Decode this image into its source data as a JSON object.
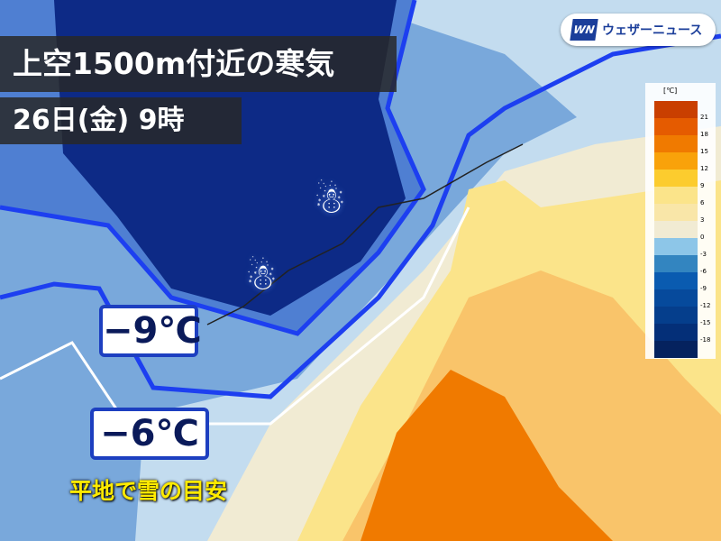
{
  "title": "上空1500m付近の寒気",
  "subtitle": "26日(金) 9時",
  "logo": {
    "mark": "WN",
    "text": "ウェザーニュース"
  },
  "colorbar": {
    "unit": "[℃]",
    "ticks": [
      "21",
      "18",
      "15",
      "12",
      "9",
      "6",
      "3",
      "0",
      "-3",
      "-6",
      "-9",
      "-12",
      "-15",
      "-18"
    ],
    "colors": [
      "#c93f00",
      "#e55b00",
      "#f07a00",
      "#f9a20a",
      "#fccc2e",
      "#fbe48a",
      "#f9e6a8",
      "#f1ebd3",
      "#8dc6e8",
      "#3385c0",
      "#0a5bb0",
      "#064a9c",
      "#053e8c",
      "#042f78",
      "#05225e"
    ]
  },
  "labels": {
    "minus9": "−9℃",
    "minus6": "−6℃",
    "note": "平地で雪の目安"
  },
  "icons": [
    "snow-icon",
    "snow-icon"
  ]
}
